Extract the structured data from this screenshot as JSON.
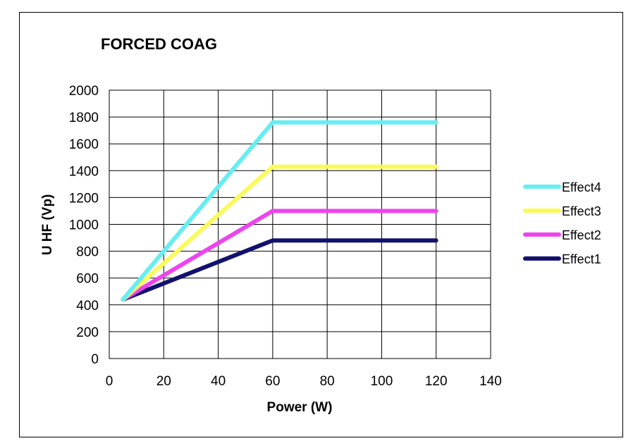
{
  "chart_data": {
    "type": "line",
    "title": "FORCED COAG",
    "xlabel": "Power (W)",
    "ylabel": "U HF (Vp)",
    "xlim": [
      0,
      140
    ],
    "ylim": [
      0,
      2000
    ],
    "xticks": [
      "0",
      "20",
      "40",
      "60",
      "80",
      "100",
      "120",
      "140"
    ],
    "yticks": [
      "0",
      "200",
      "400",
      "600",
      "800",
      "1000",
      "1200",
      "1400",
      "1600",
      "1800",
      "2000"
    ],
    "grid": true,
    "legend_position": "right",
    "series": [
      {
        "name": "Effect4",
        "color": "#66EEF2",
        "x": [
          5,
          60,
          120
        ],
        "y": [
          440,
          1760,
          1760
        ]
      },
      {
        "name": "Effect3",
        "color": "#FAFA5A",
        "x": [
          5,
          60,
          120
        ],
        "y": [
          440,
          1430,
          1430
        ]
      },
      {
        "name": "Effect2",
        "color": "#EE44EE",
        "x": [
          5,
          60,
          120
        ],
        "y": [
          440,
          1100,
          1100
        ]
      },
      {
        "name": "Effect1",
        "color": "#12126E",
        "x": [
          5,
          60,
          120
        ],
        "y": [
          440,
          880,
          880
        ]
      }
    ]
  }
}
